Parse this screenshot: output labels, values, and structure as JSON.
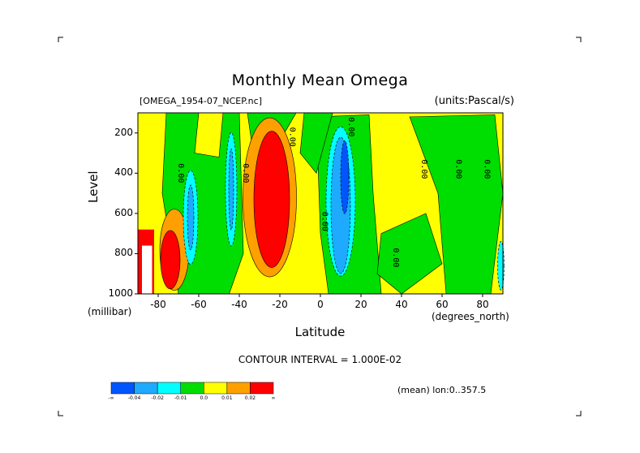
{
  "chart_data": {
    "type": "heatmap",
    "title": "Monthly Mean Omega",
    "dataset_label": "[OMEGA_1954-07_NCEP.nc]",
    "units_label": "(units:Pascal/s)",
    "xlabel": "Latitude",
    "x_unit_label": "(degrees_north)",
    "ylabel": "Level",
    "y_unit_label": "(millibar)",
    "xlim": [
      -90,
      90
    ],
    "ylim": [
      1000,
      100
    ],
    "x_ticks": [
      "-80",
      "-60",
      "-40",
      "-20",
      "0",
      "20",
      "40",
      "60",
      "80"
    ],
    "x_tick_values": [
      -80,
      -60,
      -40,
      -20,
      0,
      20,
      40,
      60,
      80
    ],
    "y_ticks": [
      "200",
      "400",
      "600",
      "800",
      "1000"
    ],
    "y_tick_values": [
      200,
      400,
      600,
      800,
      1000
    ],
    "contour_interval_text": "CONTOUR INTERVAL = 1.000E-02",
    "mean_text": "(mean) lon:0..357.5",
    "contour_labels": [
      "0.00",
      "0.00",
      "0.00",
      "0.00",
      "0.00",
      "0.00",
      "0.00",
      "0.00",
      "0.00"
    ],
    "colorbar": {
      "colors": [
        "#0055ff",
        "#1eaaff",
        "#00ffff",
        "#00dd00",
        "#ffff00",
        "#ffa000",
        "#ff0000"
      ],
      "labels": [
        "-∞",
        "-0.04",
        "-0.02",
        "-0.01",
        "0.0",
        "0.01",
        "0.02",
        "∞"
      ]
    },
    "features": [
      {
        "name": "southern-descent-red",
        "lat": -75,
        "lev": 800,
        "value": 0.03
      },
      {
        "name": "subtropical-south-red",
        "lat": -24,
        "lev": 500,
        "value": 0.03
      },
      {
        "name": "itcz-ascent-blue",
        "lat": 10,
        "lev": 550,
        "value": -0.05
      },
      {
        "name": "south-cyan-band",
        "lat": -65,
        "lev": 650,
        "value": -0.015
      },
      {
        "name": "midlat-cyan-band",
        "lat": -47,
        "lev": 500,
        "value": -0.015
      }
    ]
  }
}
